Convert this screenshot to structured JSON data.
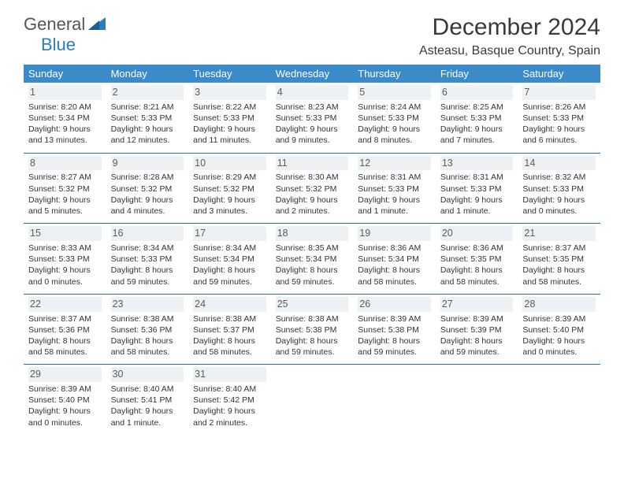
{
  "header": {
    "logo_general": "General",
    "logo_blue": "Blue",
    "month_title": "December 2024",
    "location": "Asteasu, Basque Country, Spain"
  },
  "day_names": [
    "Sunday",
    "Monday",
    "Tuesday",
    "Wednesday",
    "Thursday",
    "Friday",
    "Saturday"
  ],
  "styling": {
    "header_bg": "#3b8bc9",
    "header_fg": "#ffffff",
    "daynum_bg": "#eef1f3",
    "row_border": "#2b6ea5",
    "title_color": "#3a3a3a",
    "logo_blue": "#2b7cbf"
  },
  "days": [
    {
      "n": "1",
      "sunrise": "Sunrise: 8:20 AM",
      "sunset": "Sunset: 5:34 PM",
      "daylight": "Daylight: 9 hours and 13 minutes."
    },
    {
      "n": "2",
      "sunrise": "Sunrise: 8:21 AM",
      "sunset": "Sunset: 5:33 PM",
      "daylight": "Daylight: 9 hours and 12 minutes."
    },
    {
      "n": "3",
      "sunrise": "Sunrise: 8:22 AM",
      "sunset": "Sunset: 5:33 PM",
      "daylight": "Daylight: 9 hours and 11 minutes."
    },
    {
      "n": "4",
      "sunrise": "Sunrise: 8:23 AM",
      "sunset": "Sunset: 5:33 PM",
      "daylight": "Daylight: 9 hours and 9 minutes."
    },
    {
      "n": "5",
      "sunrise": "Sunrise: 8:24 AM",
      "sunset": "Sunset: 5:33 PM",
      "daylight": "Daylight: 9 hours and 8 minutes."
    },
    {
      "n": "6",
      "sunrise": "Sunrise: 8:25 AM",
      "sunset": "Sunset: 5:33 PM",
      "daylight": "Daylight: 9 hours and 7 minutes."
    },
    {
      "n": "7",
      "sunrise": "Sunrise: 8:26 AM",
      "sunset": "Sunset: 5:33 PM",
      "daylight": "Daylight: 9 hours and 6 minutes."
    },
    {
      "n": "8",
      "sunrise": "Sunrise: 8:27 AM",
      "sunset": "Sunset: 5:32 PM",
      "daylight": "Daylight: 9 hours and 5 minutes."
    },
    {
      "n": "9",
      "sunrise": "Sunrise: 8:28 AM",
      "sunset": "Sunset: 5:32 PM",
      "daylight": "Daylight: 9 hours and 4 minutes."
    },
    {
      "n": "10",
      "sunrise": "Sunrise: 8:29 AM",
      "sunset": "Sunset: 5:32 PM",
      "daylight": "Daylight: 9 hours and 3 minutes."
    },
    {
      "n": "11",
      "sunrise": "Sunrise: 8:30 AM",
      "sunset": "Sunset: 5:32 PM",
      "daylight": "Daylight: 9 hours and 2 minutes."
    },
    {
      "n": "12",
      "sunrise": "Sunrise: 8:31 AM",
      "sunset": "Sunset: 5:33 PM",
      "daylight": "Daylight: 9 hours and 1 minute."
    },
    {
      "n": "13",
      "sunrise": "Sunrise: 8:31 AM",
      "sunset": "Sunset: 5:33 PM",
      "daylight": "Daylight: 9 hours and 1 minute."
    },
    {
      "n": "14",
      "sunrise": "Sunrise: 8:32 AM",
      "sunset": "Sunset: 5:33 PM",
      "daylight": "Daylight: 9 hours and 0 minutes."
    },
    {
      "n": "15",
      "sunrise": "Sunrise: 8:33 AM",
      "sunset": "Sunset: 5:33 PM",
      "daylight": "Daylight: 9 hours and 0 minutes."
    },
    {
      "n": "16",
      "sunrise": "Sunrise: 8:34 AM",
      "sunset": "Sunset: 5:33 PM",
      "daylight": "Daylight: 8 hours and 59 minutes."
    },
    {
      "n": "17",
      "sunrise": "Sunrise: 8:34 AM",
      "sunset": "Sunset: 5:34 PM",
      "daylight": "Daylight: 8 hours and 59 minutes."
    },
    {
      "n": "18",
      "sunrise": "Sunrise: 8:35 AM",
      "sunset": "Sunset: 5:34 PM",
      "daylight": "Daylight: 8 hours and 59 minutes."
    },
    {
      "n": "19",
      "sunrise": "Sunrise: 8:36 AM",
      "sunset": "Sunset: 5:34 PM",
      "daylight": "Daylight: 8 hours and 58 minutes."
    },
    {
      "n": "20",
      "sunrise": "Sunrise: 8:36 AM",
      "sunset": "Sunset: 5:35 PM",
      "daylight": "Daylight: 8 hours and 58 minutes."
    },
    {
      "n": "21",
      "sunrise": "Sunrise: 8:37 AM",
      "sunset": "Sunset: 5:35 PM",
      "daylight": "Daylight: 8 hours and 58 minutes."
    },
    {
      "n": "22",
      "sunrise": "Sunrise: 8:37 AM",
      "sunset": "Sunset: 5:36 PM",
      "daylight": "Daylight: 8 hours and 58 minutes."
    },
    {
      "n": "23",
      "sunrise": "Sunrise: 8:38 AM",
      "sunset": "Sunset: 5:36 PM",
      "daylight": "Daylight: 8 hours and 58 minutes."
    },
    {
      "n": "24",
      "sunrise": "Sunrise: 8:38 AM",
      "sunset": "Sunset: 5:37 PM",
      "daylight": "Daylight: 8 hours and 58 minutes."
    },
    {
      "n": "25",
      "sunrise": "Sunrise: 8:38 AM",
      "sunset": "Sunset: 5:38 PM",
      "daylight": "Daylight: 8 hours and 59 minutes."
    },
    {
      "n": "26",
      "sunrise": "Sunrise: 8:39 AM",
      "sunset": "Sunset: 5:38 PM",
      "daylight": "Daylight: 8 hours and 59 minutes."
    },
    {
      "n": "27",
      "sunrise": "Sunrise: 8:39 AM",
      "sunset": "Sunset: 5:39 PM",
      "daylight": "Daylight: 8 hours and 59 minutes."
    },
    {
      "n": "28",
      "sunrise": "Sunrise: 8:39 AM",
      "sunset": "Sunset: 5:40 PM",
      "daylight": "Daylight: 9 hours and 0 minutes."
    },
    {
      "n": "29",
      "sunrise": "Sunrise: 8:39 AM",
      "sunset": "Sunset: 5:40 PM",
      "daylight": "Daylight: 9 hours and 0 minutes."
    },
    {
      "n": "30",
      "sunrise": "Sunrise: 8:40 AM",
      "sunset": "Sunset: 5:41 PM",
      "daylight": "Daylight: 9 hours and 1 minute."
    },
    {
      "n": "31",
      "sunrise": "Sunrise: 8:40 AM",
      "sunset": "Sunset: 5:42 PM",
      "daylight": "Daylight: 9 hours and 2 minutes."
    }
  ]
}
